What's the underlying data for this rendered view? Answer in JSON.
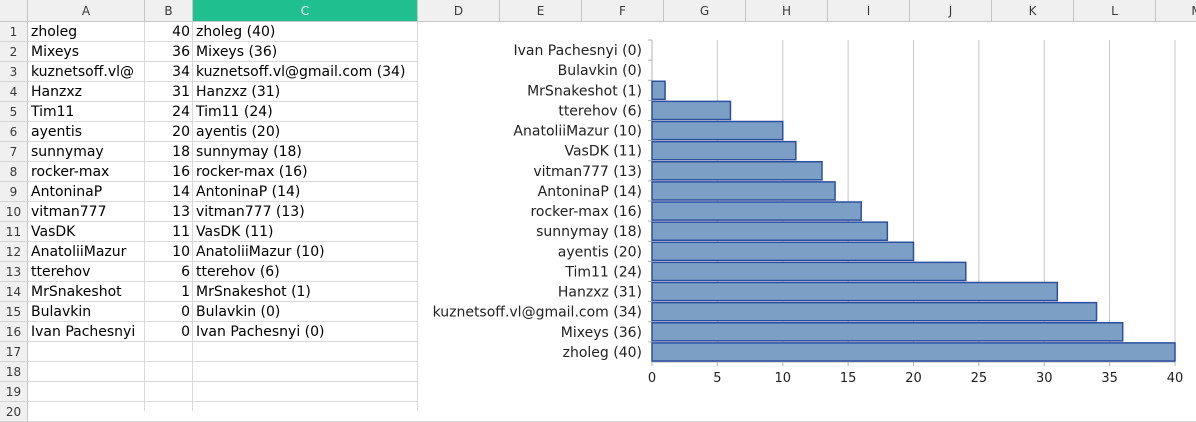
{
  "columns": [
    "A",
    "B",
    "C",
    "D",
    "E",
    "F",
    "G",
    "H",
    "I",
    "J",
    "K",
    "L",
    "M"
  ],
  "selected_column": "C",
  "rows": [
    "1",
    "2",
    "3",
    "4",
    "5",
    "6",
    "7",
    "8",
    "9",
    "10",
    "11",
    "12",
    "13",
    "14",
    "15",
    "16",
    "17",
    "18",
    "19",
    "20"
  ],
  "table": [
    {
      "a": "zholeg",
      "b": "40",
      "c": "zholeg (40)"
    },
    {
      "a": "Mixeys",
      "b": "36",
      "c": "Mixeys (36)"
    },
    {
      "a": "kuznetsoff.vl@",
      "b": "34",
      "c": "kuznetsoff.vl@gmail.com (34)"
    },
    {
      "a": "Hanzxz",
      "b": "31",
      "c": "Hanzxz (31)"
    },
    {
      "a": "Tim11",
      "b": "24",
      "c": "Tim11 (24)"
    },
    {
      "a": "ayentis",
      "b": "20",
      "c": "ayentis (20)"
    },
    {
      "a": "sunnymay",
      "b": "18",
      "c": "sunnymay (18)"
    },
    {
      "a": "rocker-max",
      "b": "16",
      "c": "rocker-max (16)"
    },
    {
      "a": "AntoninaP",
      "b": "14",
      "c": "AntoninaP (14)"
    },
    {
      "a": "vitman777",
      "b": "13",
      "c": "vitman777 (13)"
    },
    {
      "a": "VasDK",
      "b": "11",
      "c": "VasDK (11)"
    },
    {
      "a": "AnatoliiMazur",
      "b": "10",
      "c": "AnatoliiMazur (10)"
    },
    {
      "a": "tterehov",
      "b": "6",
      "c": "tterehov (6)"
    },
    {
      "a": "MrSnakeshot",
      "b": "1",
      "c": "MrSnakeshot (1)"
    },
    {
      "a": "Bulavkin",
      "b": "0",
      "c": "Bulavkin (0)"
    },
    {
      "a": "Ivan Pachesnyi",
      "b": "0",
      "c": "Ivan Pachesnyi (0)"
    }
  ],
  "chart_data": {
    "type": "bar",
    "orientation": "horizontal",
    "categories": [
      "Ivan Pachesnyi (0)",
      "Bulavkin (0)",
      "MrSnakeshot (1)",
      "tterehov (6)",
      "AnatoliiMazur (10)",
      "VasDK (11)",
      "vitman777 (13)",
      "AntoninaP (14)",
      "rocker-max (16)",
      "sunnymay (18)",
      "ayentis (20)",
      "Tim11 (24)",
      "Hanzxz (31)",
      "kuznetsoff.vl@gmail.com (34)",
      "Mixeys (36)",
      "zholeg (40)"
    ],
    "values": [
      0,
      0,
      1,
      6,
      10,
      11,
      13,
      14,
      16,
      18,
      20,
      24,
      31,
      34,
      36,
      40
    ],
    "xlim": [
      0,
      40
    ],
    "xticks": [
      "0",
      "5",
      "10",
      "15",
      "20",
      "25",
      "30",
      "35",
      "40"
    ],
    "grid": true,
    "bar_color": "#7c9fc6",
    "bar_edge_color": "#2d4fa0"
  }
}
